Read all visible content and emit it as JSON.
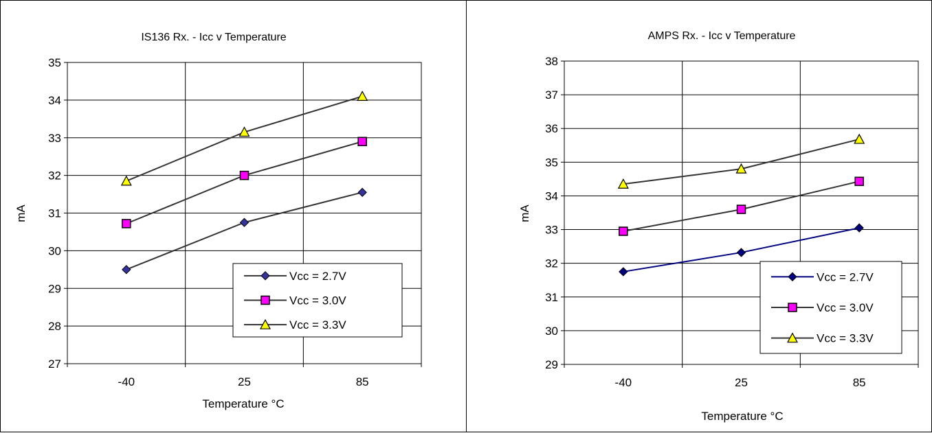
{
  "chart_data": [
    {
      "type": "line",
      "title": "IS136 Rx. -  Icc v Temperature",
      "xlabel": "Temperature °C",
      "ylabel": "mA",
      "categories": [
        "-40",
        "25",
        "85"
      ],
      "ylim": [
        27,
        35
      ],
      "yticks": [
        "27",
        "28",
        "29",
        "30",
        "31",
        "32",
        "33",
        "34",
        "35"
      ],
      "grid": true,
      "legend_position": "bottom-right",
      "series": [
        {
          "name": "Vcc = 2.7V",
          "marker": "diamond",
          "line_color": "#333333",
          "marker_color": "#333399",
          "values": [
            29.5,
            30.75,
            31.55
          ]
        },
        {
          "name": "Vcc = 3.0V",
          "marker": "square",
          "line_color": "#333333",
          "marker_color": "#ff00ff",
          "values": [
            30.72,
            32.0,
            32.9
          ]
        },
        {
          "name": "Vcc = 3.3V",
          "marker": "triangle",
          "line_color": "#333333",
          "marker_color": "#ffff00",
          "values": [
            31.85,
            33.15,
            34.1
          ]
        }
      ]
    },
    {
      "type": "line",
      "title": "AMPS Rx. - Icc v Temperature",
      "xlabel": "Temperature °C",
      "ylabel": "mA",
      "categories": [
        "-40",
        "25",
        "85"
      ],
      "ylim": [
        29,
        38
      ],
      "yticks": [
        "29",
        "30",
        "31",
        "32",
        "33",
        "34",
        "35",
        "36",
        "37",
        "38"
      ],
      "grid": true,
      "legend_position": "bottom-right",
      "series": [
        {
          "name": "Vcc = 2.7V",
          "marker": "diamond",
          "line_color": "#000080",
          "marker_color": "#000080",
          "values": [
            31.75,
            32.32,
            33.05
          ]
        },
        {
          "name": "Vcc = 3.0V",
          "marker": "square",
          "line_color": "#333333",
          "marker_color": "#ff00ff",
          "values": [
            32.95,
            33.6,
            34.43
          ]
        },
        {
          "name": "Vcc = 3.3V",
          "marker": "triangle",
          "line_color": "#333333",
          "marker_color": "#ffff00",
          "values": [
            34.35,
            34.8,
            35.68
          ]
        }
      ]
    }
  ]
}
